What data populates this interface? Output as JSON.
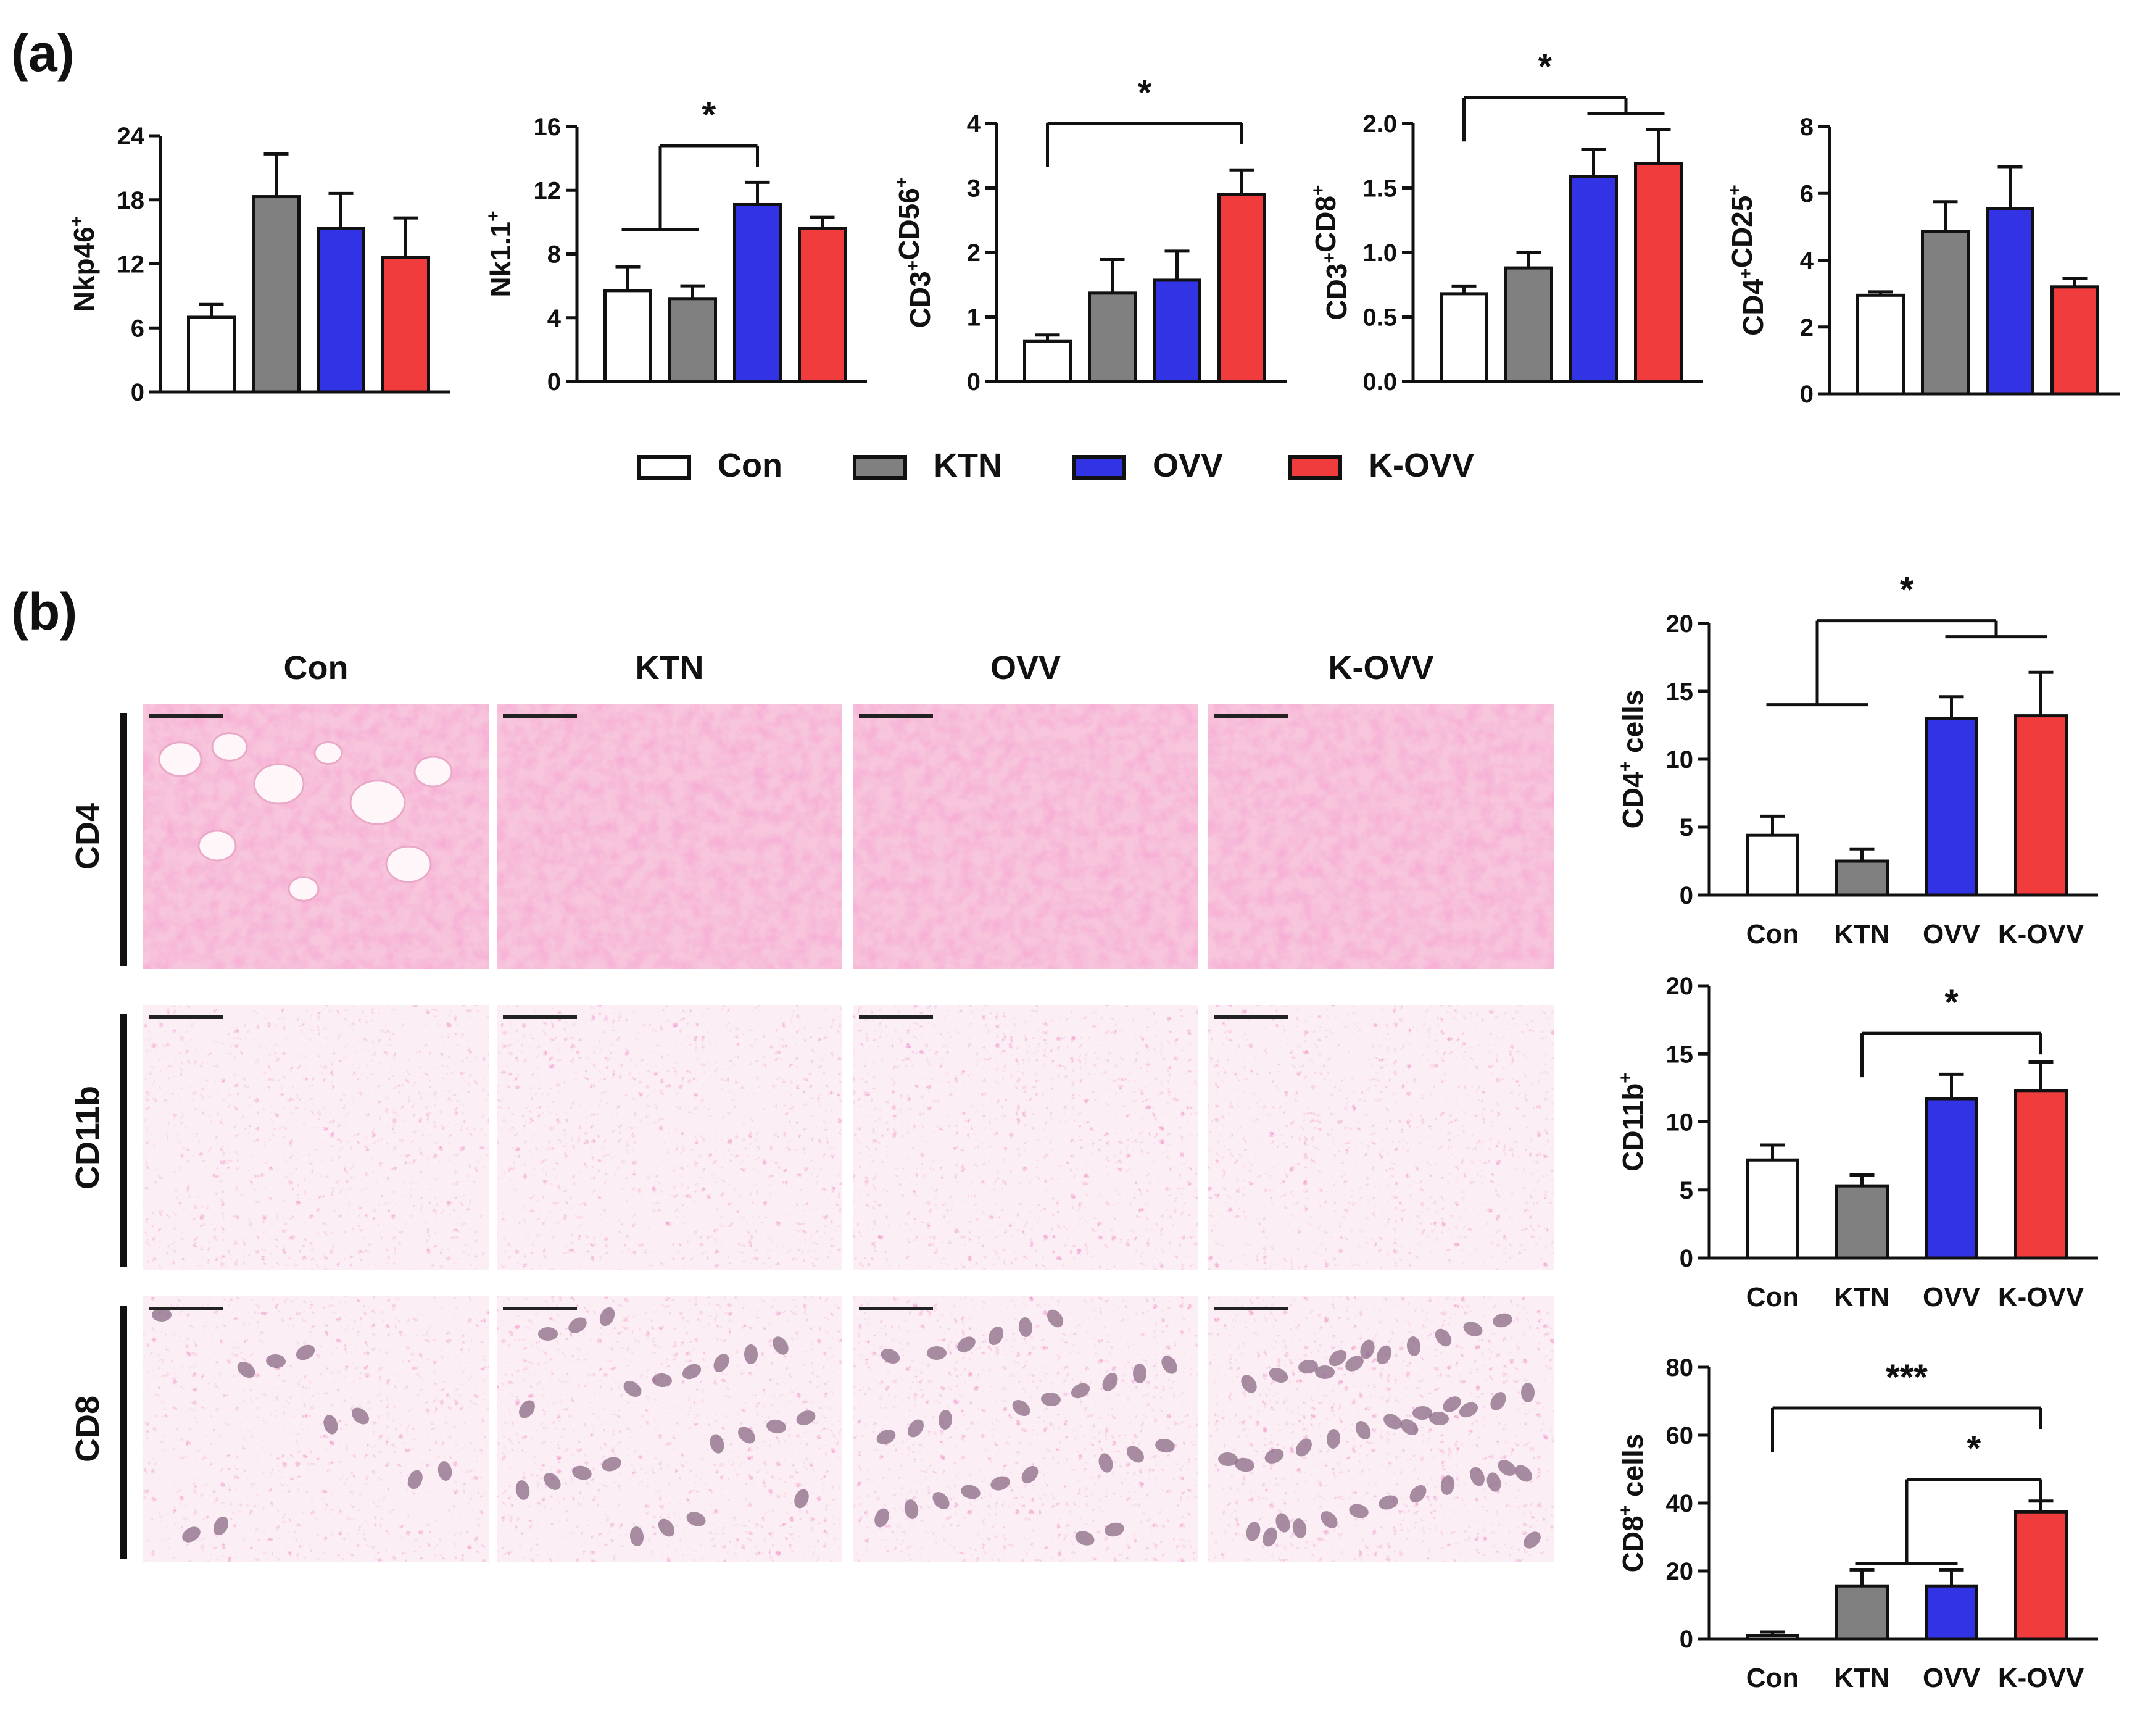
{
  "panels": {
    "a_label": "(a)",
    "b_label": "(b)"
  },
  "colors": {
    "Con": "#ffffff",
    "KTN": "#808080",
    "OVV": "#3333e6",
    "K-OVV": "#f03c3c"
  },
  "legend": {
    "items": [
      {
        "label": "Con",
        "key": "Con"
      },
      {
        "label": "KTN",
        "key": "KTN"
      },
      {
        "label": "OVV",
        "key": "OVV"
      },
      {
        "label": "K-OVV",
        "key": "K-OVV"
      }
    ]
  },
  "chart_data": [
    {
      "id": "a1",
      "type": "bar",
      "categories": [
        "Con",
        "KTN",
        "OVV",
        "K-OVV"
      ],
      "values": [
        7,
        18.3,
        15.3,
        12.6
      ],
      "errors": [
        1.2,
        4.0,
        3.3,
        3.7
      ],
      "ylabel_main": "Nkp46",
      "ylabel_sup": "+",
      "ylim": [
        0,
        24
      ],
      "yticks": [
        "0",
        "6",
        "12",
        "18",
        "24"
      ],
      "show_xlabels": false,
      "significance": []
    },
    {
      "id": "a2",
      "type": "bar",
      "categories": [
        "Con",
        "KTN",
        "OVV",
        "K-OVV"
      ],
      "values": [
        5.7,
        5.2,
        11.1,
        9.6
      ],
      "errors": [
        1.5,
        0.8,
        1.4,
        0.7
      ],
      "ylabel_main": "Nk1.1",
      "ylabel_sup": "+",
      "ylim": [
        0,
        16
      ],
      "yticks": [
        "0",
        "4",
        "8",
        "12",
        "16"
      ],
      "show_xlabels": false,
      "significance": [
        {
          "label": "*",
          "from": [
            0,
            1
          ],
          "to": [
            2
          ],
          "level": 14.8
        }
      ]
    },
    {
      "id": "a3",
      "type": "bar",
      "categories": [
        "Con",
        "KTN",
        "OVV",
        "K-OVV"
      ],
      "values": [
        0.62,
        1.37,
        1.57,
        2.9
      ],
      "errors": [
        0.1,
        0.52,
        0.45,
        0.38
      ],
      "ylabel_main": "CD3+CD56",
      "ylabel_sup": "+",
      "ylim": [
        0,
        4
      ],
      "yticks": [
        "0",
        "1",
        "2",
        "3",
        "4"
      ],
      "show_xlabels": false,
      "significance": [
        {
          "label": "*",
          "from": [
            0
          ],
          "to": [
            3
          ],
          "level": 4.0
        }
      ]
    },
    {
      "id": "a4",
      "type": "bar",
      "categories": [
        "Con",
        "KTN",
        "OVV",
        "K-OVV"
      ],
      "values": [
        0.68,
        0.88,
        1.59,
        1.69
      ],
      "errors": [
        0.06,
        0.12,
        0.21,
        0.26
      ],
      "ylabel_main": "CD3+CD8",
      "ylabel_sup": "+",
      "ylim": [
        0,
        2.0
      ],
      "yticks": [
        "0.0",
        "0.5",
        "1.0",
        "1.5",
        "2.0"
      ],
      "show_xlabels": false,
      "significance": [
        {
          "label": "*",
          "from": [
            0
          ],
          "to": [
            2,
            3
          ],
          "level": 2.2
        }
      ]
    },
    {
      "id": "a5",
      "type": "bar",
      "categories": [
        "Con",
        "KTN",
        "OVV",
        "K-OVV"
      ],
      "values": [
        2.95,
        4.85,
        5.55,
        3.2
      ],
      "errors": [
        0.1,
        0.9,
        1.25,
        0.25
      ],
      "ylabel_main": "CD4+CD25",
      "ylabel_sup": "+",
      "ylim": [
        0,
        8
      ],
      "yticks": [
        "0",
        "2",
        "4",
        "6",
        "8"
      ],
      "show_xlabels": false,
      "significance": []
    },
    {
      "id": "b1",
      "type": "bar",
      "categories": [
        "Con",
        "KTN",
        "OVV",
        "K-OVV"
      ],
      "values": [
        4.4,
        2.5,
        13.0,
        13.2
      ],
      "errors": [
        1.4,
        0.9,
        1.6,
        3.2
      ],
      "ylabel_main": "CD4",
      "ylabel_sup": "+",
      "ylabel_tail": " cells",
      "ylim": [
        0,
        20
      ],
      "yticks": [
        "0",
        "5",
        "10",
        "15",
        "20"
      ],
      "show_xlabels": true,
      "significance": [
        {
          "label": "*",
          "from": [
            0,
            1
          ],
          "to": [
            2,
            3
          ],
          "level": 20.2
        }
      ]
    },
    {
      "id": "b2",
      "type": "bar",
      "categories": [
        "Con",
        "KTN",
        "OVV",
        "K-OVV"
      ],
      "values": [
        7.2,
        5.3,
        11.7,
        12.3
      ],
      "errors": [
        1.1,
        0.8,
        1.8,
        2.1
      ],
      "ylabel_main": "CD11b",
      "ylabel_sup": "+",
      "ylim": [
        0,
        20
      ],
      "yticks": [
        "0",
        "5",
        "10",
        "15",
        "20"
      ],
      "show_xlabels": true,
      "significance": [
        {
          "label": "*",
          "from": [
            1
          ],
          "to": [
            3
          ],
          "level": 16.5
        }
      ]
    },
    {
      "id": "b3",
      "type": "bar",
      "categories": [
        "Con",
        "KTN",
        "OVV",
        "K-OVV"
      ],
      "values": [
        1.0,
        15.6,
        15.6,
        37.4
      ],
      "errors": [
        1.0,
        4.7,
        4.7,
        3.2
      ],
      "ylabel_main": "CD8",
      "ylabel_sup": "+",
      "ylabel_tail": " cells",
      "ylim": [
        0,
        80
      ],
      "yticks": [
        "0",
        "20",
        "40",
        "60",
        "80"
      ],
      "show_xlabels": true,
      "significance": [
        {
          "label": "***",
          "from": [
            0
          ],
          "to": [
            3
          ],
          "level": 68
        },
        {
          "label": "*",
          "from": [
            1,
            2
          ],
          "to": [
            3
          ],
          "level": 47
        }
      ]
    }
  ],
  "micrographs": {
    "columns": [
      "Con",
      "KTN",
      "OVV",
      "K-OVV"
    ],
    "rows": [
      "CD4",
      "CD11b",
      "CD8"
    ]
  }
}
